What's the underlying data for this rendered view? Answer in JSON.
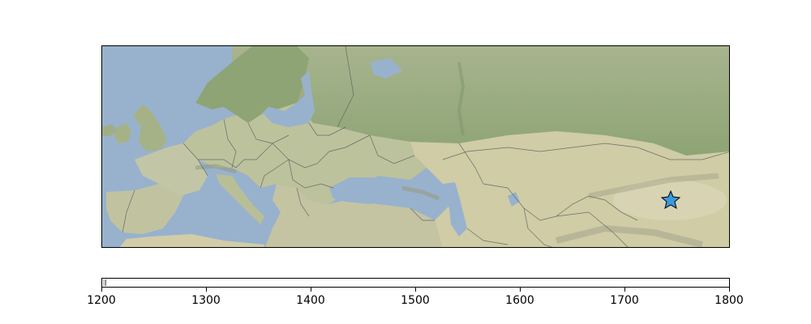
{
  "map": {
    "basemap": "shaded-relief",
    "colors": {
      "sea": "#98b2cd",
      "land": "#c3c8a6",
      "forest": "#8ea475",
      "steppe": "#cfcca6",
      "borders": "#555555",
      "marker_fill": "#3a9ae0",
      "marker_stroke": "#000000"
    },
    "marker": {
      "icon": "star-icon",
      "lon": 88.5,
      "lat": 39.5
    }
  },
  "timeline": {
    "ticks": [
      "1200",
      "1300",
      "1400",
      "1500",
      "1600",
      "1700",
      "1800"
    ],
    "range": [
      1200,
      1800
    ],
    "current_value": 1202
  }
}
